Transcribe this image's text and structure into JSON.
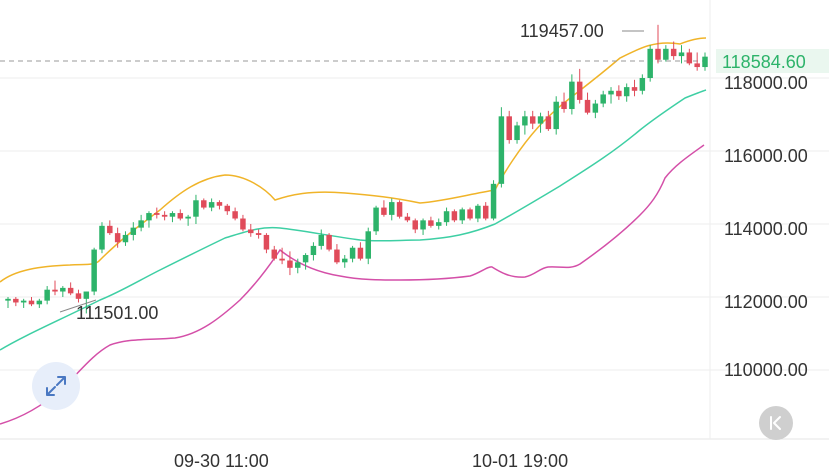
{
  "chart_data": {
    "type": "candlestick",
    "y_axis": {
      "ticks": [
        110000,
        112000,
        114000,
        116000,
        118000
      ],
      "tick_labels": [
        "110000.00",
        "112000.00",
        "114000.00",
        "116000.00",
        "118000.00"
      ],
      "range": [
        108000,
        119600
      ],
      "grid": true
    },
    "x_axis": {
      "tick_labels": [
        "09-30 11:00",
        "10-01 19:00"
      ]
    },
    "current_price": {
      "label": "118584.60",
      "value": 118584.6,
      "color": "#2db36a"
    },
    "annotations": {
      "high": {
        "label": "119457.00",
        "value": 119457
      },
      "low": {
        "label": "111501.00",
        "value": 111501
      }
    },
    "colors": {
      "up": "#2db36a",
      "down": "#e04b5a",
      "upper_band": "#f0b429",
      "middle_band": "#3ecfa4",
      "lower_band": "#d44fa8"
    },
    "candles": [
      [
        111900,
        112000,
        111700,
        111950
      ],
      [
        111950,
        112000,
        111750,
        111850
      ],
      [
        111850,
        111950,
        111700,
        111900
      ],
      [
        111900,
        112000,
        111750,
        111800
      ],
      [
        111800,
        111950,
        111700,
        111900
      ],
      [
        111900,
        112300,
        111800,
        112200
      ],
      [
        112200,
        112450,
        112050,
        112150
      ],
      [
        112150,
        112300,
        112000,
        112250
      ],
      [
        112250,
        112400,
        112050,
        112100
      ],
      [
        112100,
        112200,
        111850,
        111950
      ],
      [
        111950,
        112150,
        111550,
        112150
      ],
      [
        112150,
        113350,
        112050,
        113300
      ],
      [
        113300,
        114050,
        113200,
        113950
      ],
      [
        113950,
        114100,
        113700,
        113750
      ],
      [
        113750,
        113900,
        113350,
        113500
      ],
      [
        113500,
        113800,
        113400,
        113700
      ],
      [
        113700,
        114050,
        113550,
        113900
      ],
      [
        113900,
        114250,
        113800,
        114100
      ],
      [
        114100,
        114350,
        113900,
        114300
      ],
      [
        114300,
        114450,
        114150,
        114250
      ],
      [
        114250,
        114350,
        114100,
        114200
      ],
      [
        114200,
        114350,
        114050,
        114300
      ],
      [
        114300,
        114400,
        114100,
        114150
      ],
      [
        114150,
        114250,
        113950,
        114200
      ],
      [
        114200,
        114800,
        114000,
        114650
      ],
      [
        114650,
        114700,
        114400,
        114450
      ],
      [
        114450,
        114700,
        114350,
        114600
      ],
      [
        114600,
        114650,
        114400,
        114500
      ],
      [
        114500,
        114550,
        114250,
        114350
      ],
      [
        114350,
        114450,
        114100,
        114150
      ],
      [
        114150,
        114250,
        113800,
        113850
      ],
      [
        113850,
        114000,
        113650,
        113750
      ],
      [
        113750,
        113850,
        113600,
        113700
      ],
      [
        113700,
        113750,
        113200,
        113300
      ],
      [
        113300,
        113400,
        113000,
        113050
      ],
      [
        113050,
        113350,
        112900,
        113000
      ],
      [
        113000,
        113250,
        112600,
        112800
      ],
      [
        112800,
        113050,
        112650,
        112950
      ],
      [
        112950,
        113200,
        112750,
        113150
      ],
      [
        113150,
        113500,
        113000,
        113400
      ],
      [
        113400,
        113850,
        113300,
        113700
      ],
      [
        113700,
        113750,
        113250,
        113300
      ],
      [
        113300,
        113450,
        112900,
        112950
      ],
      [
        112950,
        113150,
        112800,
        113050
      ],
      [
        113050,
        113400,
        112950,
        113350
      ],
      [
        113350,
        113500,
        113000,
        113050
      ],
      [
        113050,
        113900,
        112900,
        113800
      ],
      [
        113800,
        114500,
        113700,
        114450
      ],
      [
        114450,
        114650,
        114200,
        114250
      ],
      [
        114250,
        114700,
        114100,
        114600
      ],
      [
        114600,
        114650,
        114150,
        114200
      ],
      [
        114200,
        114300,
        114050,
        114100
      ],
      [
        114100,
        114150,
        113750,
        113850
      ],
      [
        113850,
        114150,
        113700,
        114100
      ],
      [
        114100,
        114200,
        113900,
        113950
      ],
      [
        113950,
        114150,
        113850,
        114050
      ],
      [
        114050,
        114450,
        113950,
        114350
      ],
      [
        114350,
        114400,
        114050,
        114100
      ],
      [
        114100,
        114450,
        114000,
        114400
      ],
      [
        114400,
        114450,
        114100,
        114150
      ],
      [
        114150,
        114550,
        114050,
        114500
      ],
      [
        114500,
        114600,
        114100,
        114150
      ],
      [
        114150,
        115200,
        114100,
        115100
      ],
      [
        115100,
        117200,
        115000,
        116950
      ],
      [
        116950,
        117100,
        116200,
        116300
      ],
      [
        116300,
        116800,
        116200,
        116700
      ],
      [
        116700,
        117100,
        116450,
        116950
      ],
      [
        116950,
        117100,
        116600,
        116750
      ],
      [
        116750,
        117050,
        116500,
        116950
      ],
      [
        116950,
        117100,
        116550,
        116600
      ],
      [
        116600,
        117500,
        116450,
        117350
      ],
      [
        117350,
        117600,
        117050,
        117150
      ],
      [
        117150,
        118100,
        117000,
        117900
      ],
      [
        117900,
        118250,
        117300,
        117400
      ],
      [
        117400,
        117600,
        117000,
        117050
      ],
      [
        117050,
        117400,
        116900,
        117300
      ],
      [
        117300,
        117650,
        117200,
        117550
      ],
      [
        117550,
        117750,
        117300,
        117650
      ],
      [
        117650,
        117800,
        117400,
        117500
      ],
      [
        117500,
        117850,
        117350,
        117750
      ],
      [
        117750,
        117950,
        117500,
        117650
      ],
      [
        117650,
        118100,
        117550,
        118000
      ],
      [
        118000,
        118900,
        117900,
        118800
      ],
      [
        118800,
        119457,
        118400,
        118500
      ],
      [
        118500,
        118900,
        118450,
        118800
      ],
      [
        118800,
        119000,
        118500,
        118600
      ],
      [
        118600,
        118900,
        118400,
        118700
      ],
      [
        118700,
        118800,
        118350,
        118400
      ],
      [
        118400,
        118700,
        118200,
        118300
      ],
      [
        118300,
        118700,
        118200,
        118584.6
      ]
    ]
  },
  "controls": {
    "expand_icon": "expand-arrows-icon",
    "back_icon": "collapse-back-icon"
  }
}
